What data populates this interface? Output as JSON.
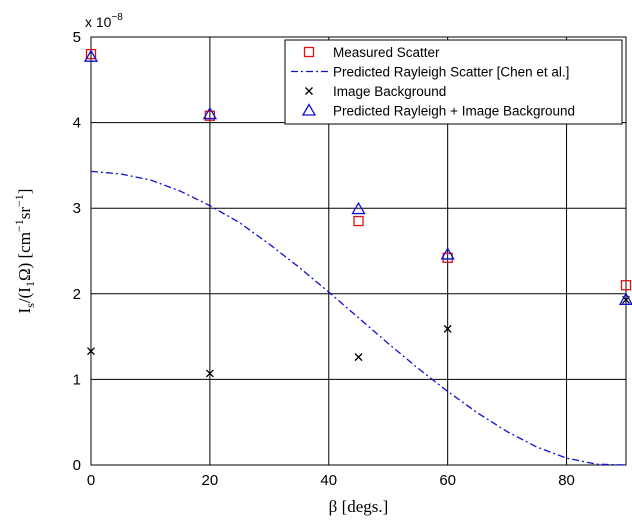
{
  "chart_data": {
    "type": "scatter",
    "title": "",
    "xlabel": "β  [degs.]",
    "ylabel_parts": {
      "main": "I",
      "sub1": "s",
      "mid": "/(I",
      "sub2": "1",
      "tail": "Ω) [cm",
      "sup1": "−1",
      "tail2": "sr",
      "sup2": "−1",
      "end": "]"
    },
    "y_multiplier": {
      "base": "x 10",
      "exp": "−8"
    },
    "xlim": [
      0,
      90
    ],
    "ylim": [
      0,
      5
    ],
    "xticks": [
      "0",
      "20",
      "40",
      "60",
      "80"
    ],
    "yticks": [
      "0",
      "1",
      "2",
      "3",
      "4",
      "5"
    ],
    "grid": true,
    "legend_position": "top-right",
    "series": [
      {
        "name": "Measured Scatter",
        "marker": "square",
        "color": "#e01010",
        "x": [
          0,
          20,
          45,
          60,
          90
        ],
        "y": [
          4.8,
          4.08,
          2.85,
          2.42,
          2.1
        ]
      },
      {
        "name": "Predicted Rayleigh Scatter [Chen et al.]",
        "marker": "dashdot-line",
        "color": "#1010d0",
        "x": [
          0,
          5,
          10,
          15,
          20,
          25,
          30,
          35,
          40,
          45,
          50,
          55,
          60,
          65,
          70,
          75,
          80,
          85,
          90
        ],
        "y": [
          3.43,
          3.4,
          3.33,
          3.2,
          3.03,
          2.83,
          2.58,
          2.31,
          2.02,
          1.72,
          1.42,
          1.13,
          0.86,
          0.61,
          0.39,
          0.21,
          0.08,
          0.01,
          0.0
        ]
      },
      {
        "name": "Image Background",
        "marker": "x",
        "color": "#000000",
        "x": [
          0,
          20,
          45,
          60,
          90
        ],
        "y": [
          1.33,
          1.07,
          1.26,
          1.59,
          1.93
        ]
      },
      {
        "name": "Predicted Rayleigh + Image Background",
        "marker": "triangle",
        "color": "#1010d0",
        "x": [
          0,
          20,
          45,
          60,
          90
        ],
        "y": [
          4.77,
          4.1,
          2.99,
          2.46,
          1.93
        ]
      }
    ]
  }
}
